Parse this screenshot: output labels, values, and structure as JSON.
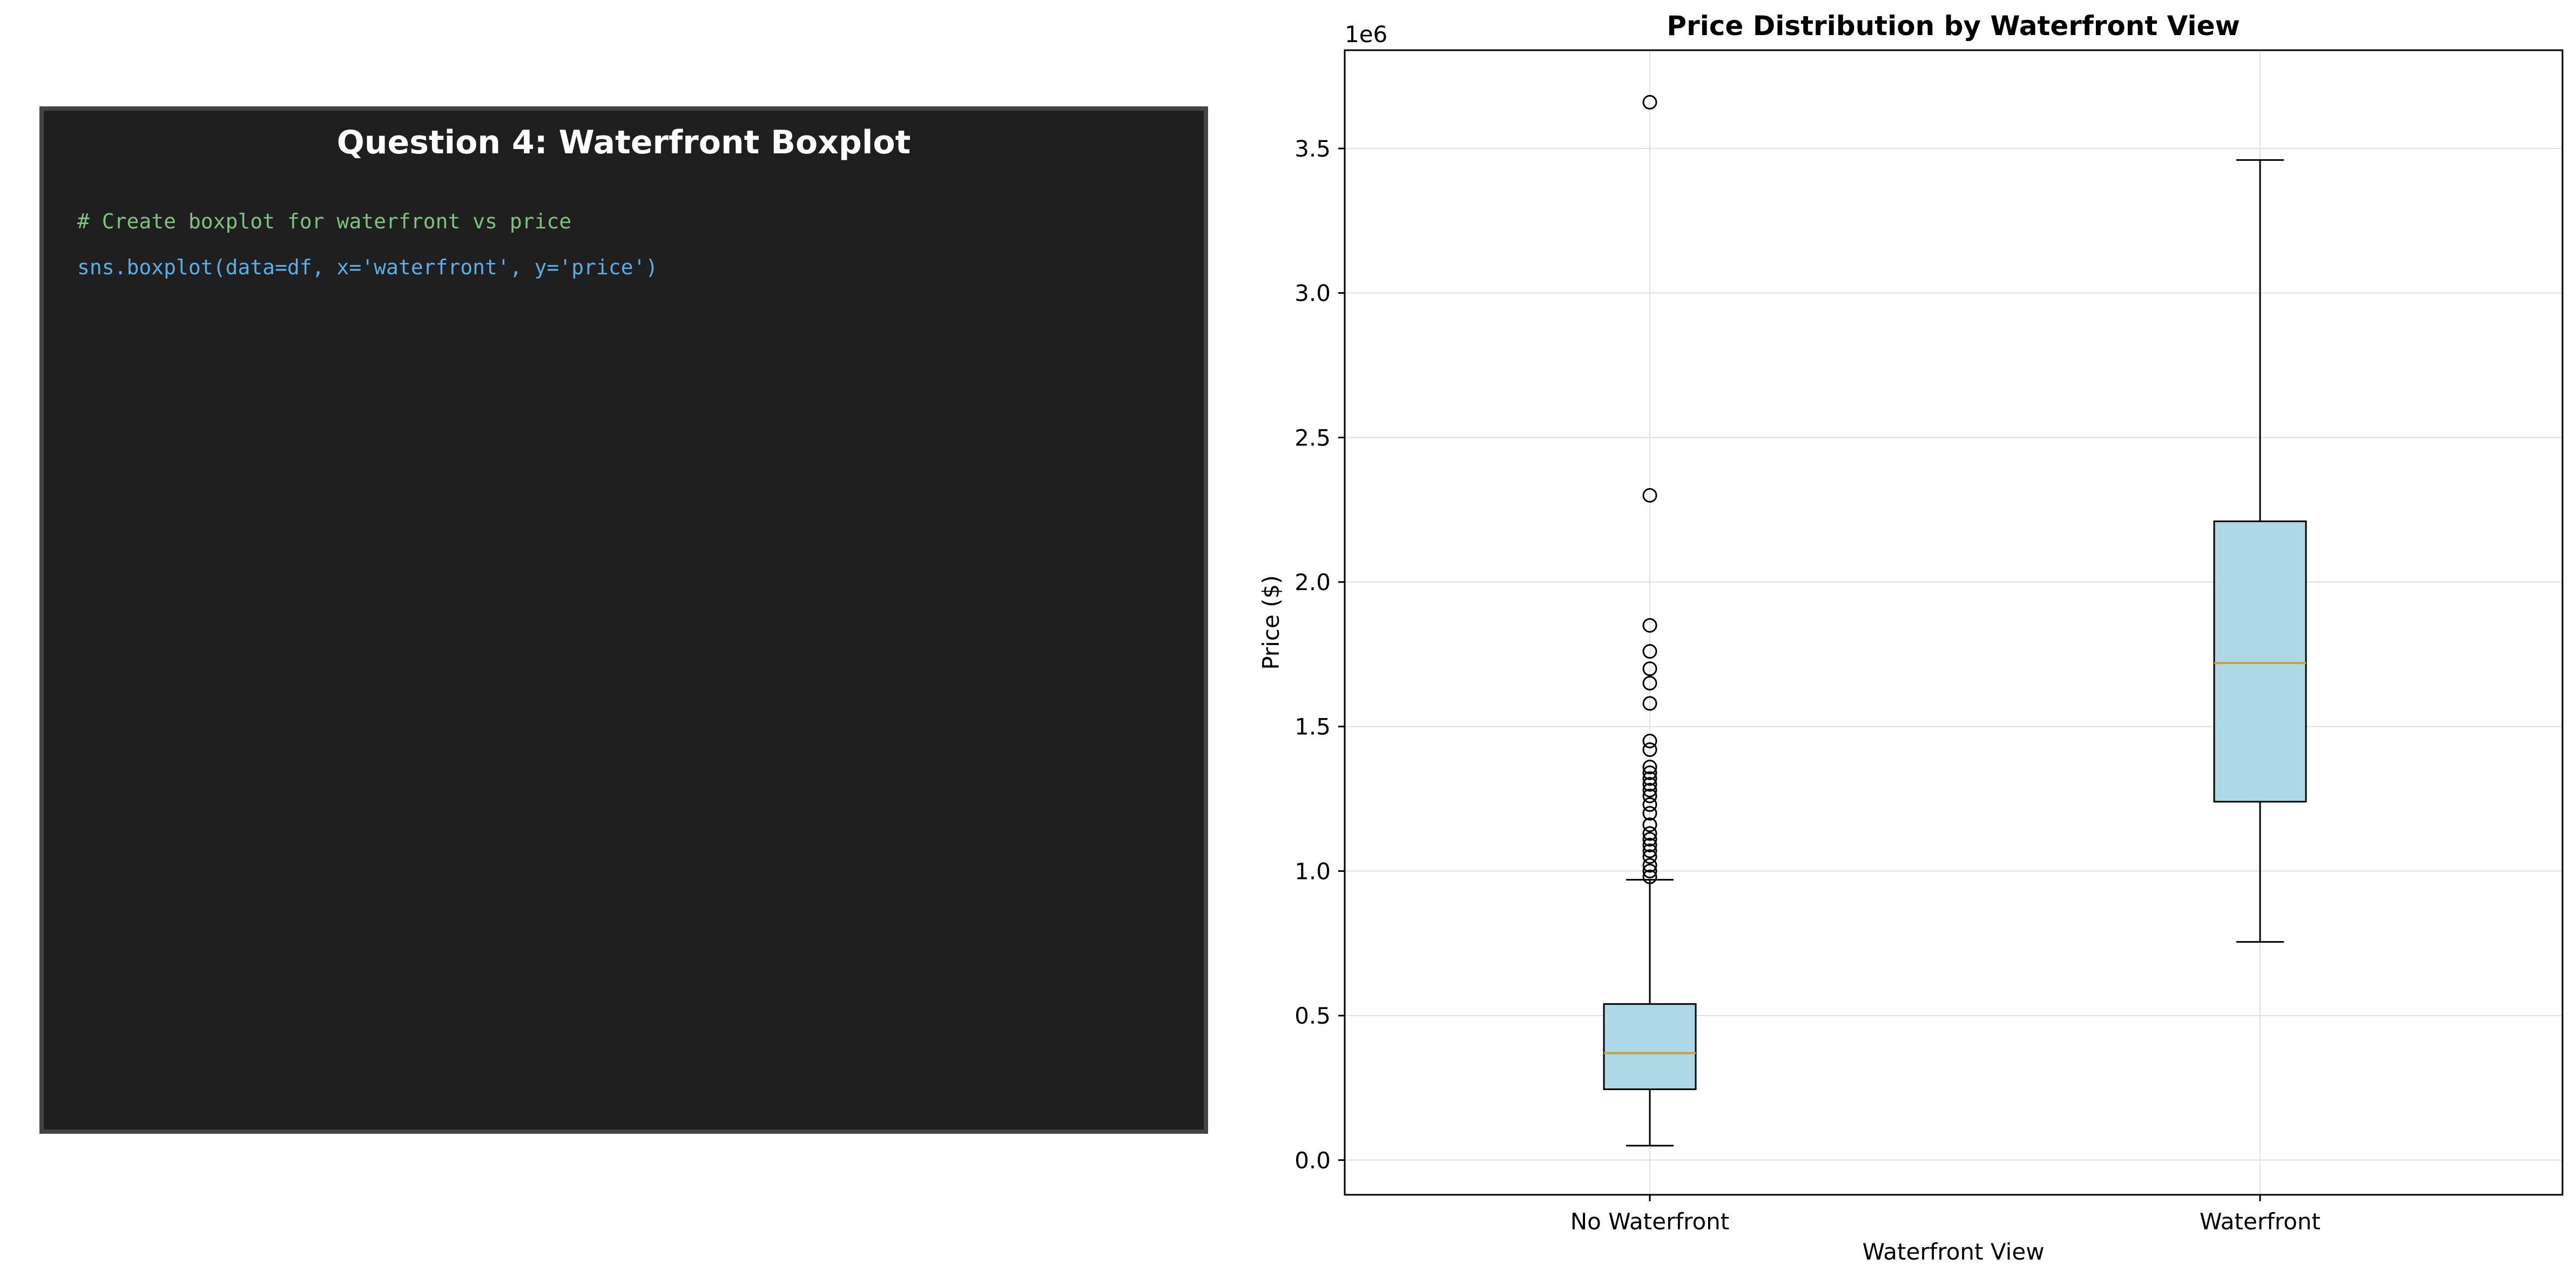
{
  "code_panel": {
    "title": "Question 4: Waterfront Boxplot",
    "comment": "# Create boxplot for waterfront vs price",
    "code": "sns.boxplot(data=df, x='waterfront', y='price')"
  },
  "chart_data": {
    "type": "boxplot",
    "title": "Price Distribution by Waterfront View",
    "xlabel": "Waterfront View",
    "ylabel": "Price ($)",
    "y_offset_text": "1e6",
    "categories": [
      "No Waterfront",
      "Waterfront"
    ],
    "ylim": [
      -0.12,
      3.84
    ],
    "yticks": [
      0.0,
      0.5,
      1.0,
      1.5,
      2.0,
      2.5,
      3.0,
      3.5
    ],
    "ytick_labels": [
      "0.0",
      "0.5",
      "1.0",
      "1.5",
      "2.0",
      "2.5",
      "3.0",
      "3.5"
    ],
    "grid": true,
    "box_color": "#add8e6",
    "median_color": "#c8a040",
    "boxes": [
      {
        "category": "No Waterfront",
        "whisker_low": 0.05,
        "q1": 0.245,
        "median": 0.37,
        "q3": 0.54,
        "whisker_high": 0.97,
        "outliers": [
          0.98,
          1.0,
          1.02,
          1.05,
          1.07,
          1.09,
          1.11,
          1.13,
          1.16,
          1.2,
          1.23,
          1.26,
          1.28,
          1.3,
          1.32,
          1.34,
          1.36,
          1.42,
          1.45,
          1.58,
          1.65,
          1.7,
          1.76,
          1.85,
          2.3,
          3.66
        ]
      },
      {
        "category": "Waterfront",
        "whisker_low": 0.755,
        "q1": 1.24,
        "median": 1.72,
        "q3": 2.21,
        "whisker_high": 3.46,
        "outliers": []
      }
    ]
  }
}
